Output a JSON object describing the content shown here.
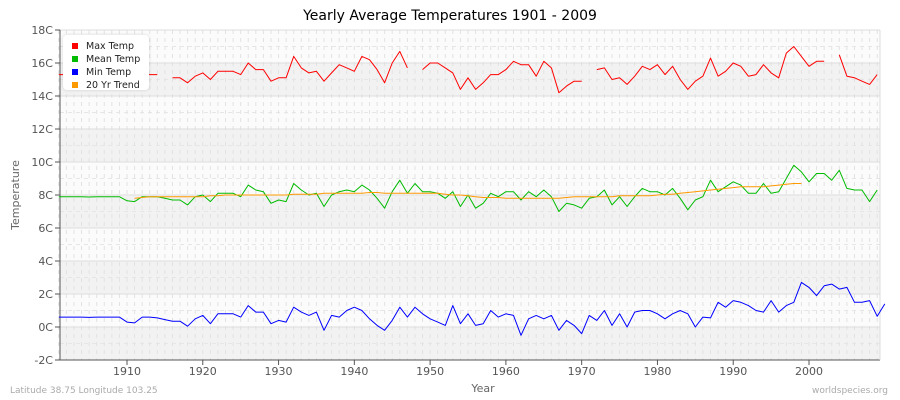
{
  "chart_data": {
    "type": "line",
    "title": "Yearly Average Temperatures 1901 - 2009",
    "xlabel": "Year",
    "ylabel": "Temperature",
    "xlim": [
      1901,
      2009
    ],
    "ylim": [
      -2,
      18
    ],
    "x_ticks": [
      "1910",
      "1920",
      "1930",
      "1940",
      "1950",
      "1960",
      "1970",
      "1980",
      "1990",
      "2000"
    ],
    "y_ticks": [
      "-2C",
      "0C",
      "2C",
      "4C",
      "6C",
      "8C",
      "10C",
      "12C",
      "14C",
      "16C",
      "18C"
    ],
    "grid": true,
    "legend_position": "top-left",
    "x_start": 1901,
    "series": [
      {
        "name": "Max Temp",
        "color": "#ff0000",
        "values": [
          15.3,
          15.3,
          15.3,
          15.3,
          15.3,
          15.3,
          15.3,
          15.3,
          15.3,
          15.3,
          15.3,
          15.3,
          15.3,
          15.3,
          null,
          15.1,
          15.1,
          14.8,
          15.2,
          15.4,
          15.0,
          15.5,
          15.5,
          15.5,
          15.3,
          16.0,
          15.6,
          15.6,
          14.9,
          15.1,
          15.1,
          16.4,
          15.7,
          15.4,
          15.5,
          14.9,
          15.4,
          15.9,
          15.7,
          15.5,
          16.4,
          16.2,
          15.6,
          14.8,
          16.0,
          16.7,
          15.7,
          null,
          15.6,
          16.0,
          16.0,
          15.7,
          15.4,
          14.4,
          15.1,
          14.4,
          14.8,
          15.3,
          15.3,
          15.6,
          16.1,
          15.9,
          15.9,
          15.2,
          16.1,
          15.7,
          14.2,
          14.6,
          14.9,
          14.9,
          null,
          15.6,
          15.7,
          15.0,
          15.1,
          14.7,
          15.2,
          15.8,
          15.6,
          15.9,
          15.3,
          15.8,
          15.0,
          14.4,
          14.9,
          15.2,
          16.3,
          15.2,
          15.5,
          16.0,
          15.8,
          15.2,
          15.3,
          15.9,
          15.4,
          15.1,
          16.6,
          17.0,
          16.4,
          15.8,
          16.1,
          16.1,
          null,
          16.5,
          15.2,
          15.1,
          14.9,
          14.7,
          15.3
        ]
      },
      {
        "name": "Mean Temp",
        "color": "#00bb00",
        "values": [
          7.9,
          7.9,
          7.9,
          7.9,
          7.88,
          7.9,
          7.9,
          7.9,
          7.9,
          7.65,
          7.6,
          7.9,
          7.9,
          7.9,
          7.8,
          7.7,
          7.7,
          7.4,
          7.9,
          8.0,
          7.6,
          8.1,
          8.1,
          8.1,
          7.9,
          8.6,
          8.3,
          8.2,
          7.5,
          7.7,
          7.6,
          8.7,
          8.3,
          8.0,
          8.1,
          7.3,
          8.0,
          8.2,
          8.3,
          8.2,
          8.6,
          8.3,
          7.8,
          7.2,
          8.2,
          8.9,
          8.1,
          8.7,
          8.2,
          8.2,
          8.1,
          7.8,
          8.2,
          7.3,
          8.0,
          7.2,
          7.5,
          8.1,
          7.9,
          8.2,
          8.2,
          7.7,
          8.2,
          7.9,
          8.3,
          7.9,
          7.0,
          7.5,
          7.4,
          7.2,
          7.8,
          7.9,
          8.3,
          7.4,
          7.9,
          7.3,
          7.9,
          8.4,
          8.2,
          8.2,
          8.0,
          8.4,
          7.8,
          7.1,
          7.7,
          7.9,
          8.9,
          8.2,
          8.5,
          8.8,
          8.6,
          8.1,
          8.1,
          8.7,
          8.1,
          8.2,
          9.0,
          9.8,
          9.4,
          8.8,
          9.3,
          9.3,
          8.9,
          9.5,
          8.4,
          8.3,
          8.3,
          7.6,
          8.3
        ]
      },
      {
        "name": "Min Temp",
        "color": "#0000ff",
        "values": [
          0.6,
          0.6,
          0.6,
          0.6,
          0.58,
          0.6,
          0.6,
          0.6,
          0.6,
          0.3,
          0.25,
          0.6,
          0.6,
          0.55,
          0.45,
          0.35,
          0.35,
          0.05,
          0.5,
          0.7,
          0.2,
          0.8,
          0.8,
          0.8,
          0.6,
          1.3,
          0.9,
          0.9,
          0.2,
          0.4,
          0.3,
          1.2,
          0.9,
          0.7,
          0.9,
          -0.2,
          0.7,
          0.6,
          1.0,
          1.2,
          1.0,
          0.5,
          0.1,
          -0.2,
          0.4,
          1.2,
          0.6,
          1.2,
          0.8,
          0.5,
          0.3,
          0.1,
          1.3,
          0.2,
          0.8,
          0.1,
          0.2,
          1.0,
          0.6,
          0.8,
          0.7,
          -0.5,
          0.5,
          0.7,
          0.5,
          0.7,
          -0.2,
          0.4,
          0.1,
          -0.4,
          0.7,
          0.4,
          1.0,
          0.1,
          0.8,
          0.0,
          0.9,
          1.0,
          1.0,
          0.8,
          0.5,
          0.8,
          1.0,
          0.8,
          0.0,
          0.6,
          0.55,
          1.5,
          1.2,
          1.6,
          1.5,
          1.3,
          1.0,
          0.9,
          1.6,
          0.9,
          1.3,
          1.5,
          2.7,
          2.4,
          1.9,
          2.5,
          2.6,
          2.3,
          2.4,
          1.5,
          1.5,
          1.6,
          0.65,
          1.4
        ]
      },
      {
        "name": "20 Yr Trend",
        "color": "#ff9900",
        "values": [
          null,
          null,
          null,
          null,
          null,
          null,
          null,
          null,
          null,
          null,
          7.8,
          7.85,
          7.9,
          7.9,
          7.9,
          7.9,
          7.9,
          7.9,
          7.9,
          7.9,
          7.95,
          7.95,
          8.0,
          8.0,
          8.0,
          8.0,
          8.0,
          8.0,
          8.0,
          8.0,
          8.0,
          8.05,
          8.05,
          8.05,
          8.05,
          8.1,
          8.1,
          8.1,
          8.1,
          8.1,
          8.1,
          8.15,
          8.15,
          8.1,
          8.1,
          8.1,
          8.1,
          8.1,
          8.1,
          8.1,
          8.1,
          8.05,
          8.0,
          8.0,
          7.95,
          7.9,
          7.85,
          7.85,
          7.85,
          7.8,
          7.8,
          7.8,
          7.8,
          7.8,
          7.8,
          7.8,
          7.8,
          7.85,
          7.9,
          7.9,
          7.9,
          7.9,
          7.9,
          7.9,
          7.95,
          7.95,
          7.95,
          7.95,
          7.95,
          8.0,
          8.05,
          8.05,
          8.1,
          8.15,
          8.2,
          8.25,
          8.3,
          8.35,
          8.4,
          8.45,
          8.5,
          8.5,
          8.5,
          8.5,
          8.55,
          8.6,
          8.65,
          8.7,
          8.7,
          null,
          null,
          null,
          null,
          null,
          null,
          null,
          null,
          null,
          null
        ]
      }
    ]
  },
  "footer": {
    "location": "Latitude 38.75 Longitude 103.25",
    "source": "worldspecies.org"
  }
}
